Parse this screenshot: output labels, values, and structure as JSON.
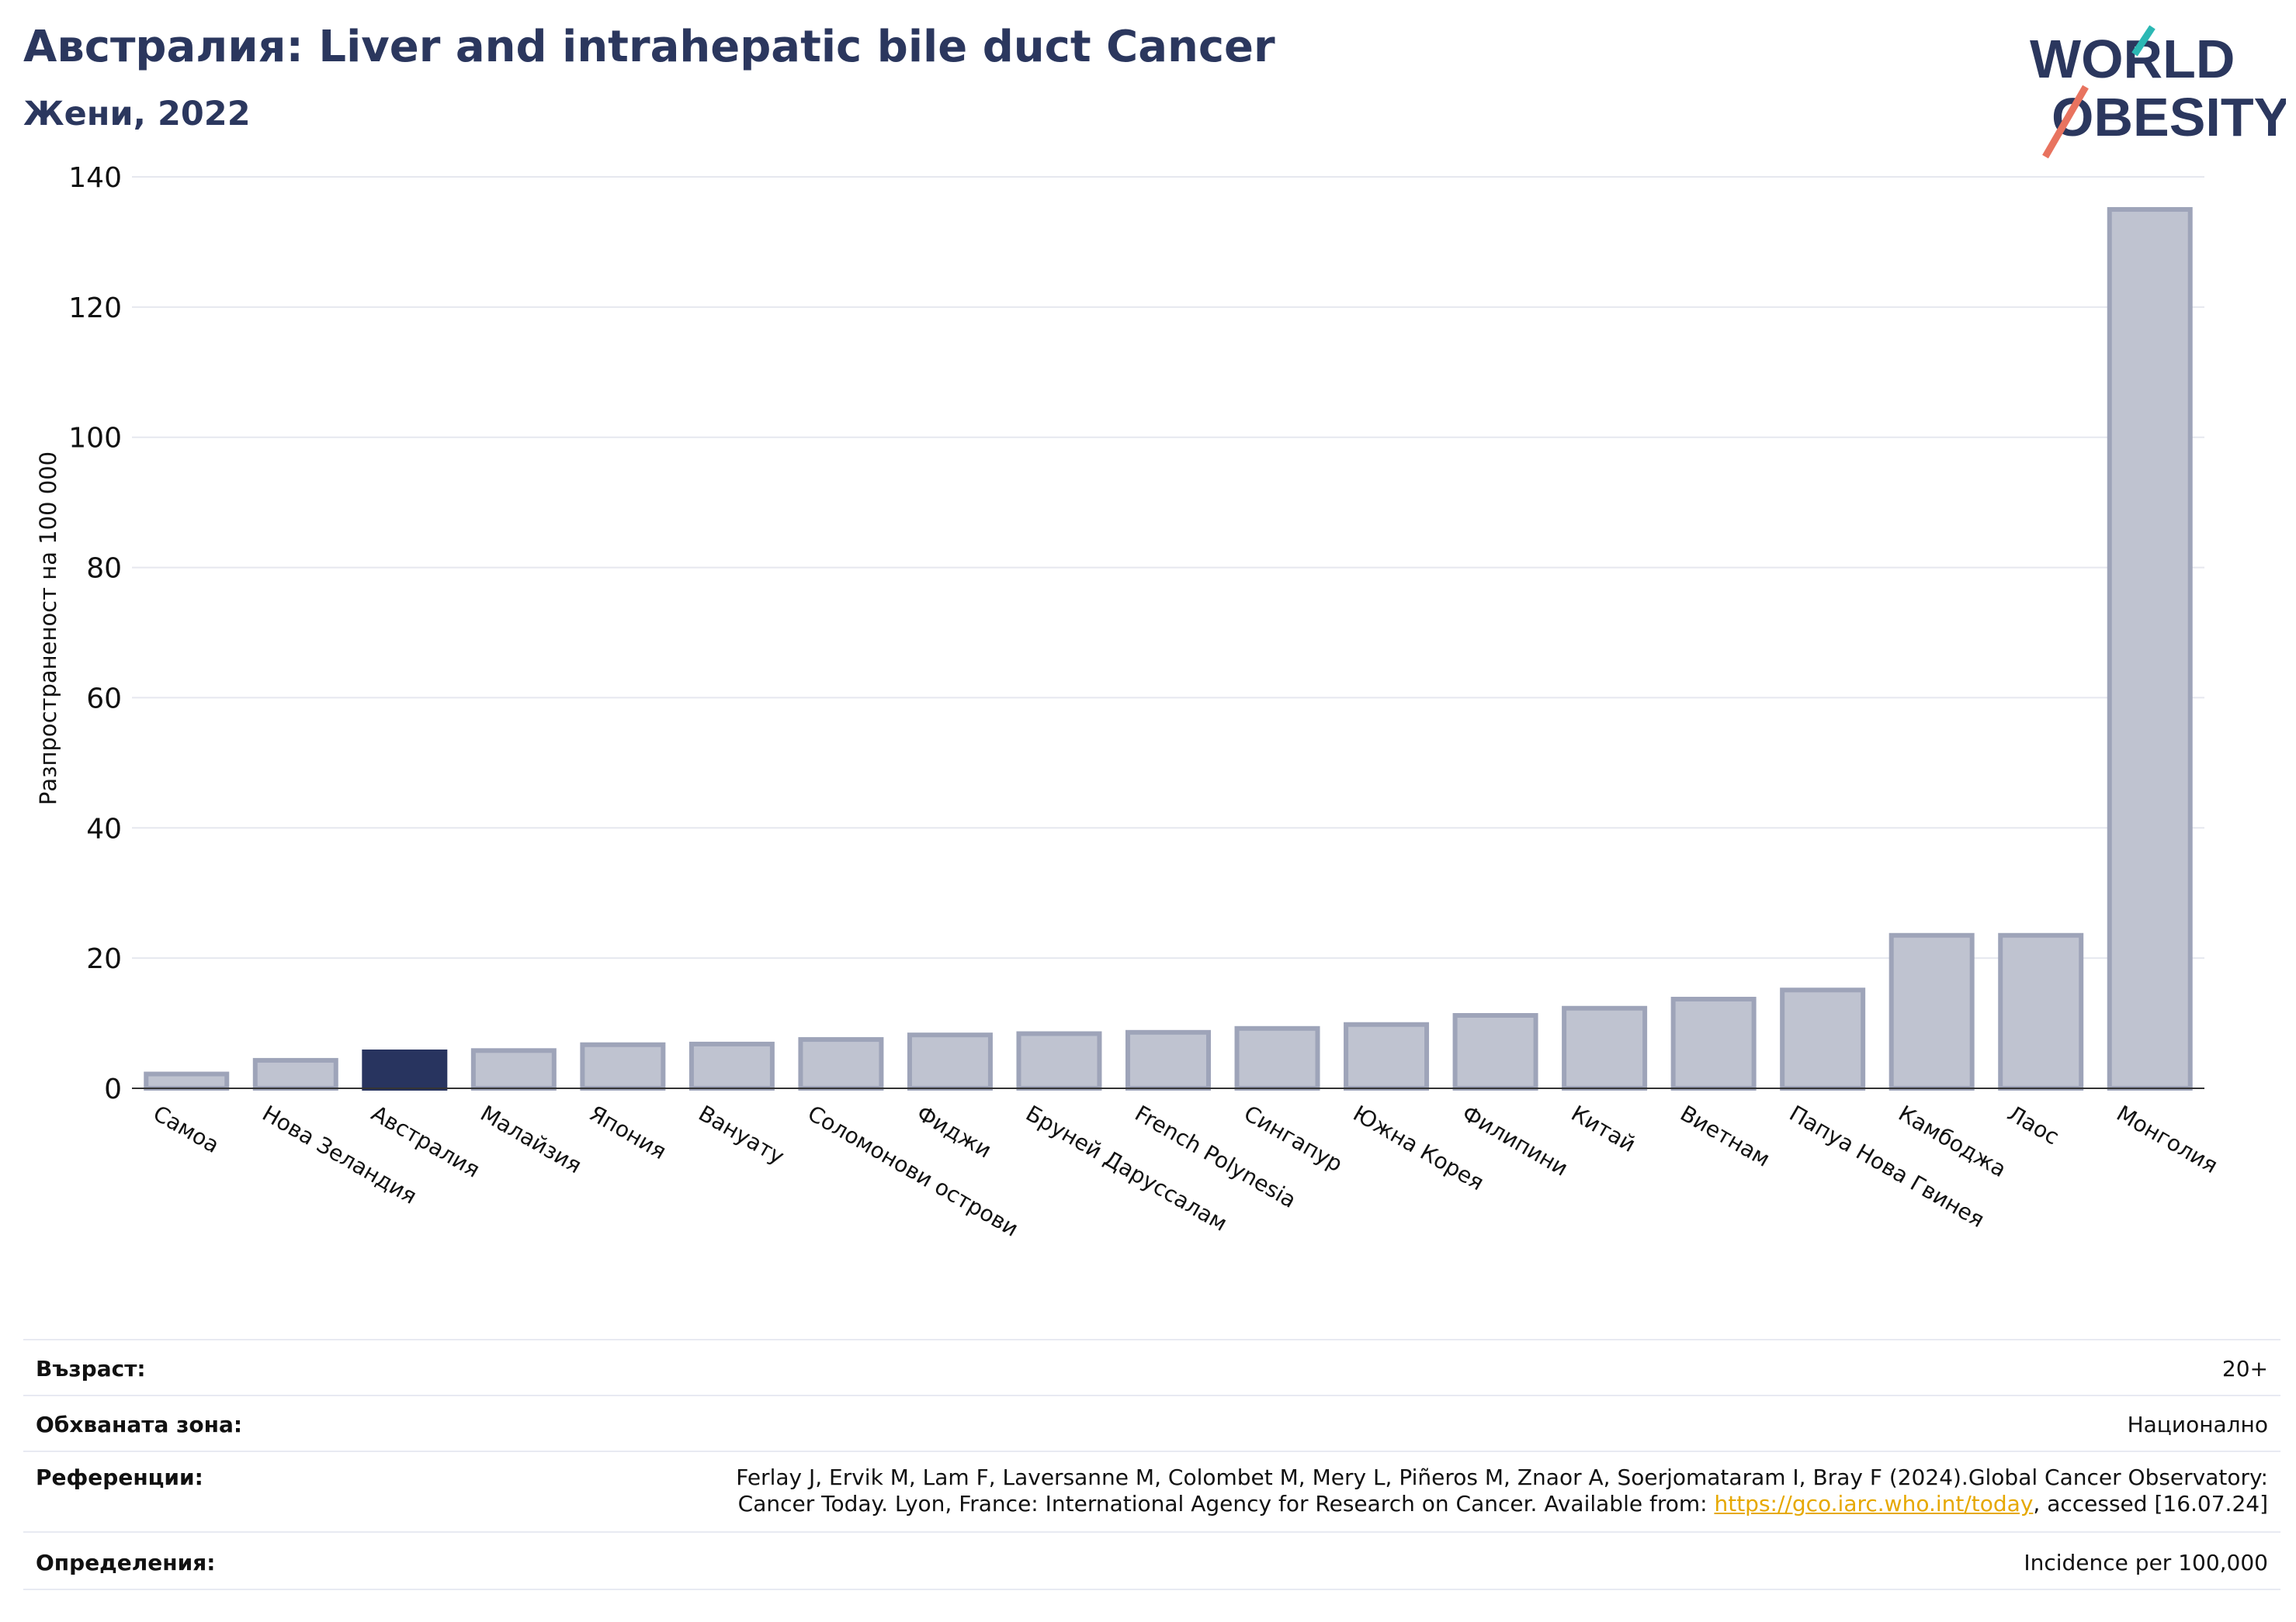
{
  "header": {
    "title": "Австралия: Liver and intrahepatic bile duct Cancer",
    "subtitle": "Жени, 2022"
  },
  "logo": {
    "line1": "WORLD",
    "line2": "OBESITY"
  },
  "colors": {
    "bar": "#bfc3d0",
    "bar_edge": "#9ea4b9",
    "highlight": "#28345f",
    "title": "#2b375e",
    "grid": "#e6e8ef",
    "link": "#e6a800"
  },
  "chart_data": {
    "type": "bar",
    "title": "Австралия: Liver and intrahepatic bile duct Cancer",
    "subtitle": "Жени, 2022",
    "xlabel": "",
    "ylabel": "Разпространеност  на 100 000",
    "ylim": [
      0,
      140
    ],
    "yticks": [
      0,
      20,
      40,
      60,
      80,
      100,
      120,
      140
    ],
    "grid": true,
    "highlight": "Австралия",
    "categories": [
      "Самоа",
      "Нова Зеландия",
      "Австралия",
      "Малайзия",
      "Япония",
      "Вануату",
      "Соломонови острови",
      "Фиджи",
      "Бруней Даруссалам",
      "French Polynesia",
      "Сингапур",
      "Южна Корея",
      "Филипини",
      "Китай",
      "Виетнам",
      "Папуа Нова Гвинея",
      "Камбоджа",
      "Лаос",
      "Монголия"
    ],
    "values": [
      2.2,
      4.3,
      5.6,
      5.8,
      6.7,
      6.8,
      7.5,
      8.2,
      8.4,
      8.6,
      9.2,
      9.8,
      11.2,
      12.3,
      13.7,
      15.1,
      23.5,
      23.5,
      135.0
    ]
  },
  "meta": {
    "age_label": "Възраст:",
    "age_value": "20+",
    "area_label": "Обхваната зона:",
    "area_value": "Национално",
    "ref_label": "Референции:",
    "ref_line1": "Ferlay J, Ervik M, Lam F, Laversanne M, Colombet M, Mery L, Piñeros M, Znaor A, Soerjomataram I, Bray F (2024).Global Cancer Observatory:",
    "ref_line2_pre": "Cancer Today. Lyon, France: International Agency for Research on Cancer. Available from: ",
    "ref_link": "https://gco.iarc.who.int/today",
    "ref_line2_post": ", accessed [16.07.24]",
    "def_label": "Определения:",
    "def_value": "Incidence per 100,000"
  }
}
